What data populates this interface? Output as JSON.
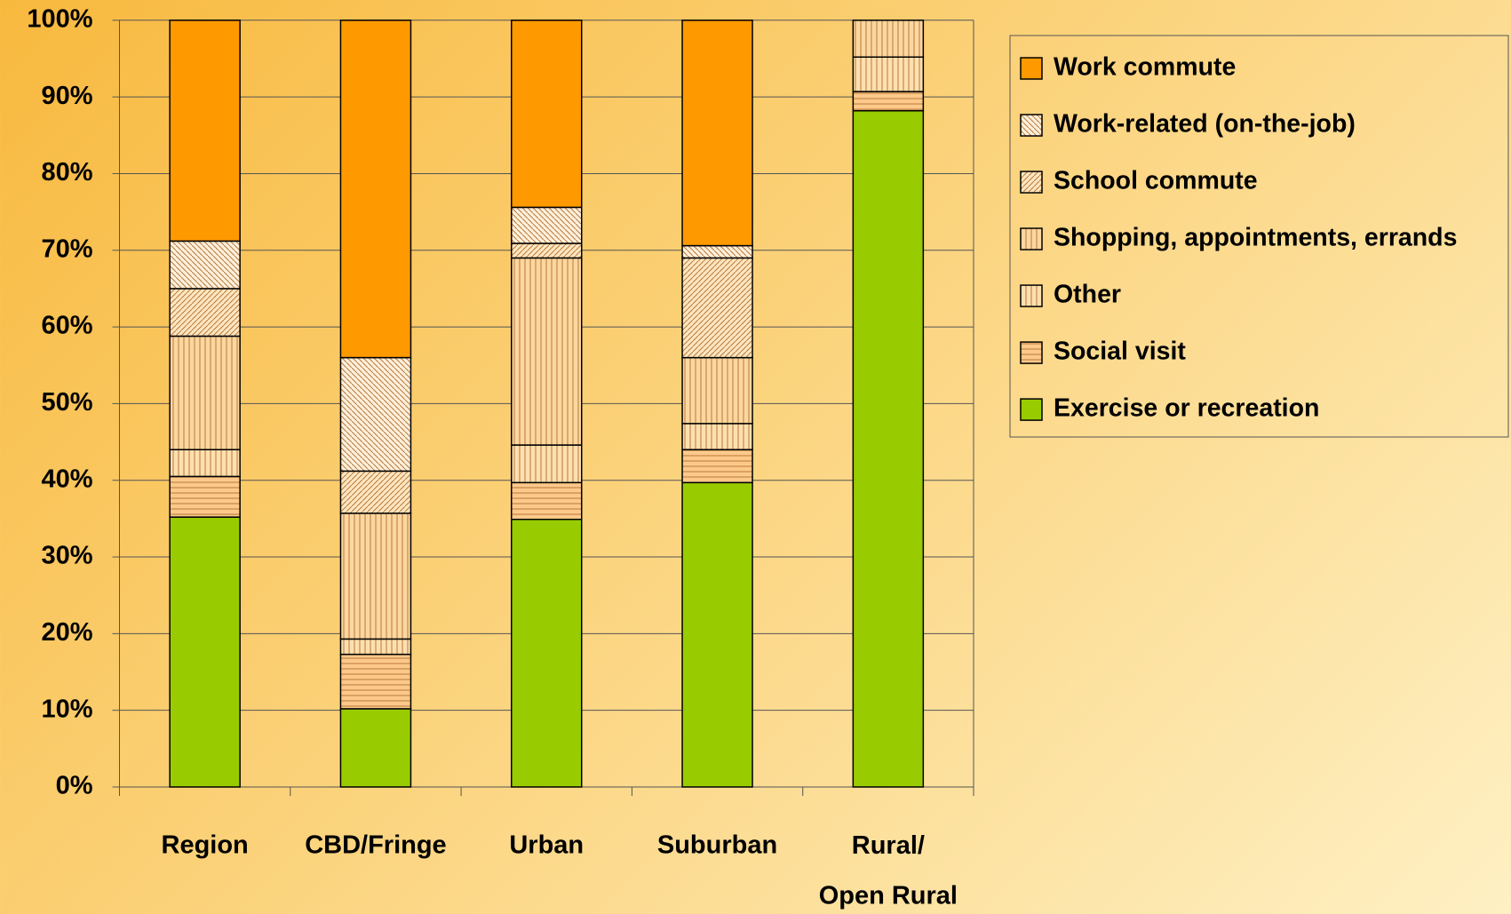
{
  "chart_data": {
    "type": "stacked_bar",
    "categories": [
      "Region",
      "CBD/Fringe",
      "Urban",
      "Suburban",
      "Rural/\nOpen Rural"
    ],
    "series": [
      {
        "name": "Exercise or recreation",
        "color": "#99cc00",
        "values": [
          35.2,
          10.2,
          34.9,
          39.7,
          88.2
        ]
      },
      {
        "name": "Social visit",
        "color": "#fcc98a",
        "values": [
          5.3,
          7.1,
          4.8,
          4.3,
          2.5
        ]
      },
      {
        "name": "Other",
        "color": "#fde0b0",
        "values": [
          3.5,
          2.0,
          4.9,
          3.4,
          4.5
        ]
      },
      {
        "name": "Shopping, appointments, errands",
        "color": "#fcd7a0",
        "values": [
          14.8,
          16.4,
          24.4,
          8.6,
          4.8
        ]
      },
      {
        "name": "School commute",
        "color": "#fde6c0",
        "values": [
          6.2,
          5.5,
          1.9,
          13.0,
          0
        ]
      },
      {
        "name": "Work-related (on-the-job)",
        "color": "#fdf0dc",
        "values": [
          6.2,
          14.8,
          4.7,
          1.6,
          0
        ]
      },
      {
        "name": "Work commute",
        "color": "#ff9900",
        "values": [
          28.8,
          44.0,
          24.4,
          29.4,
          0
        ]
      }
    ],
    "ylim": [
      0,
      100
    ],
    "yticks": [
      {
        "value": 0,
        "label": "0%"
      },
      {
        "value": 10,
        "label": "10%"
      },
      {
        "value": 20,
        "label": "20%"
      },
      {
        "value": 30,
        "label": "30%"
      },
      {
        "value": 40,
        "label": "40%"
      },
      {
        "value": 50,
        "label": "50%"
      },
      {
        "value": 60,
        "label": "60%"
      },
      {
        "value": 70,
        "label": "70%"
      },
      {
        "value": 80,
        "label": "80%"
      },
      {
        "value": 90,
        "label": "90%"
      },
      {
        "value": 100,
        "label": "100%"
      }
    ],
    "grid": true,
    "legend": "right"
  }
}
